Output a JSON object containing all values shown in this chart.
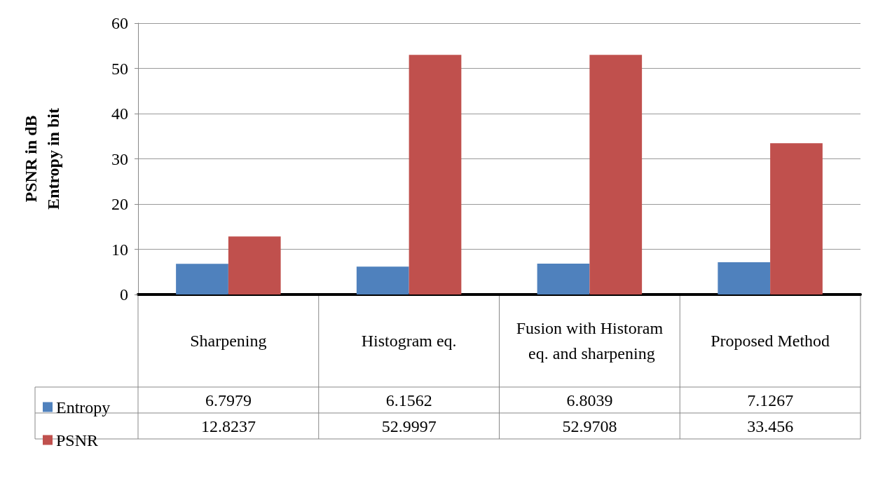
{
  "chart_data": {
    "type": "bar",
    "ylabel": "PSNR in dB\nEntropy in bit",
    "categories": [
      "Sharpening",
      "Histogram eq.",
      "Fusion with Historam eq. and sharpening",
      "Proposed Method"
    ],
    "series": [
      {
        "name": "Entropy",
        "color": "#4f81bd",
        "values": [
          6.7979,
          6.1562,
          6.8039,
          7.1267
        ]
      },
      {
        "name": "PSNR",
        "color": "#c0504d",
        "values": [
          12.8237,
          52.9997,
          52.9708,
          33.456
        ]
      }
    ],
    "ylim": [
      0,
      60
    ],
    "yticks": [
      0,
      10,
      20,
      30,
      40,
      50,
      60
    ],
    "grid": "y",
    "legend": "bottom left",
    "data_labels": true
  }
}
